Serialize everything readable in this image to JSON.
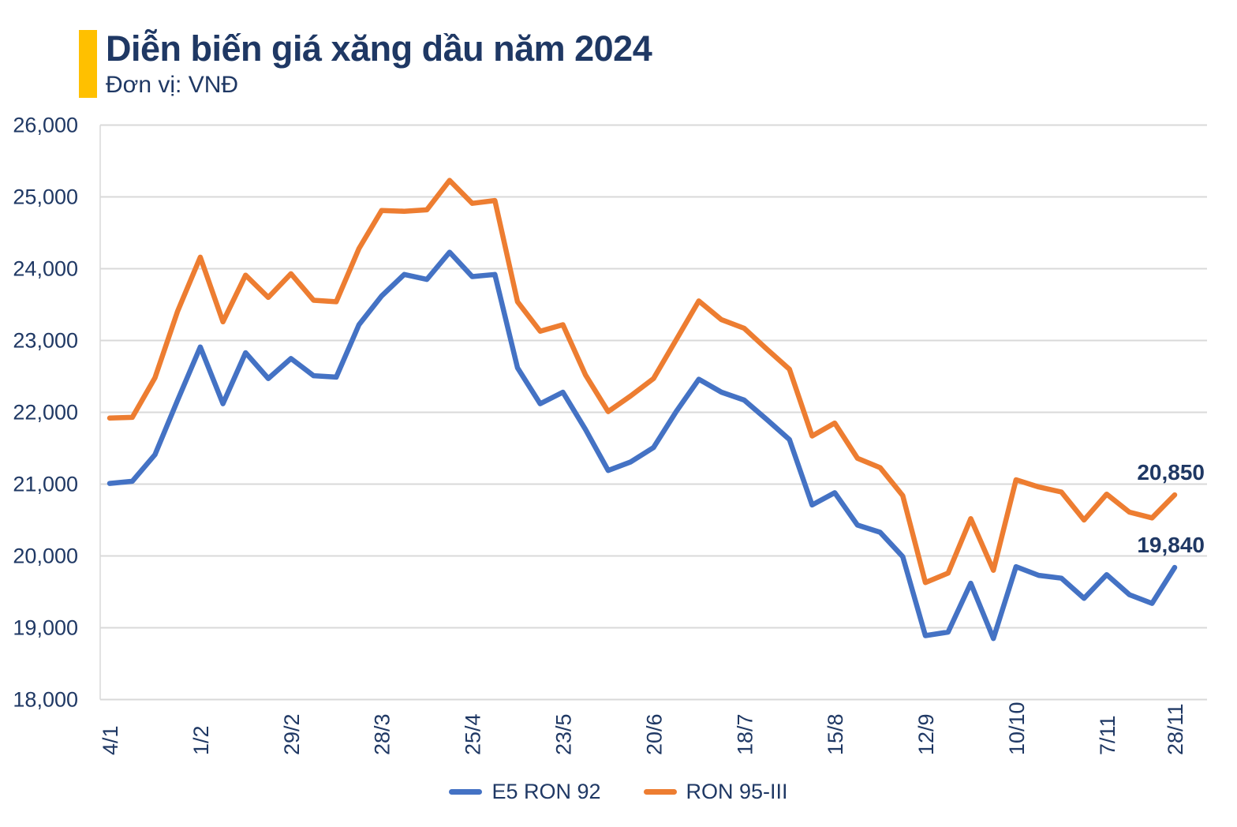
{
  "header": {
    "title": "Diễn biến giá xăng dầu năm 2024",
    "subtitle": "Đơn vị: VNĐ"
  },
  "colors": {
    "accent": "#FFC000",
    "navy_text": "#1F3864",
    "grid": "#D9D9D9",
    "blue_series": "#4472C4",
    "orange_series": "#ED7D31"
  },
  "legend": {
    "items": [
      {
        "label": "E5 RON 92",
        "color": "#4472C4"
      },
      {
        "label": "RON 95-III",
        "color": "#ED7D31"
      }
    ]
  },
  "chart_data": {
    "type": "line",
    "title": "Diễn biến giá xăng dầu năm 2024",
    "unit_label": "Đơn vị: VNĐ",
    "grid": true,
    "legend_position": "bottom",
    "x": [
      "4/1",
      "11/1",
      "18/1",
      "25/1",
      "1/2",
      "8/2",
      "15/2",
      "22/2",
      "29/2",
      "7/3",
      "14/3",
      "21/3",
      "28/3",
      "4/4",
      "11/4",
      "18/4",
      "25/4",
      "2/5",
      "9/5",
      "16/5",
      "23/5",
      "30/5",
      "6/6",
      "13/6",
      "20/6",
      "27/6",
      "4/7",
      "11/7",
      "18/7",
      "25/7",
      "1/8",
      "8/8",
      "15/8",
      "22/8",
      "29/8",
      "5/9",
      "12/9",
      "19/9",
      "26/9",
      "3/10",
      "10/10",
      "17/10",
      "24/10",
      "31/10",
      "7/11",
      "14/11",
      "21/11",
      "28/11"
    ],
    "x_ticks": [
      {
        "label": "4/1",
        "index": 0
      },
      {
        "label": "1/2",
        "index": 4
      },
      {
        "label": "29/2",
        "index": 8
      },
      {
        "label": "28/3",
        "index": 12
      },
      {
        "label": "25/4",
        "index": 16
      },
      {
        "label": "23/5",
        "index": 20
      },
      {
        "label": "20/6",
        "index": 24
      },
      {
        "label": "18/7",
        "index": 28
      },
      {
        "label": "15/8",
        "index": 32
      },
      {
        "label": "12/9",
        "index": 36
      },
      {
        "label": "10/10",
        "index": 40
      },
      {
        "label": "7/11",
        "index": 44
      },
      {
        "label": "28/11",
        "index": 47
      }
    ],
    "y_axis": {
      "min": 18000,
      "max": 26000,
      "step": 1000,
      "tick_labels": [
        "26,000",
        "25,000",
        "24,000",
        "23,000",
        "22,000",
        "21,000",
        "20,000",
        "19,000",
        "18,000"
      ]
    },
    "series": [
      {
        "name": "E5 RON 92",
        "color": "#4472C4",
        "values": [
          21010,
          21040,
          21410,
          22170,
          22910,
          22120,
          22830,
          22470,
          22750,
          22510,
          22490,
          23220,
          23620,
          23920,
          23850,
          24230,
          23890,
          23920,
          22620,
          22120,
          22280,
          21760,
          21190,
          21310,
          21510,
          22010,
          22460,
          22280,
          22170,
          21900,
          21620,
          20710,
          20880,
          20430,
          20330,
          19990,
          18890,
          18940,
          19620,
          18850,
          19850,
          19730,
          19690,
          19410,
          19740,
          19460,
          19340,
          19840
        ]
      },
      {
        "name": "RON 95-III",
        "color": "#ED7D31",
        "values": [
          21920,
          21930,
          22480,
          23410,
          24160,
          23260,
          23910,
          23600,
          23930,
          23560,
          23540,
          24280,
          24810,
          24800,
          24820,
          25230,
          24910,
          24950,
          23540,
          23130,
          23220,
          22520,
          22010,
          22230,
          22470,
          23010,
          23550,
          23290,
          23170,
          22880,
          22600,
          21670,
          21850,
          21360,
          21230,
          20840,
          19630,
          19760,
          20520,
          19800,
          21060,
          20960,
          20890,
          20500,
          20860,
          20610,
          20530,
          20850
        ]
      }
    ],
    "end_labels": [
      {
        "text": "20,850",
        "series_index": 1
      },
      {
        "text": "19,840",
        "series_index": 0
      }
    ]
  }
}
